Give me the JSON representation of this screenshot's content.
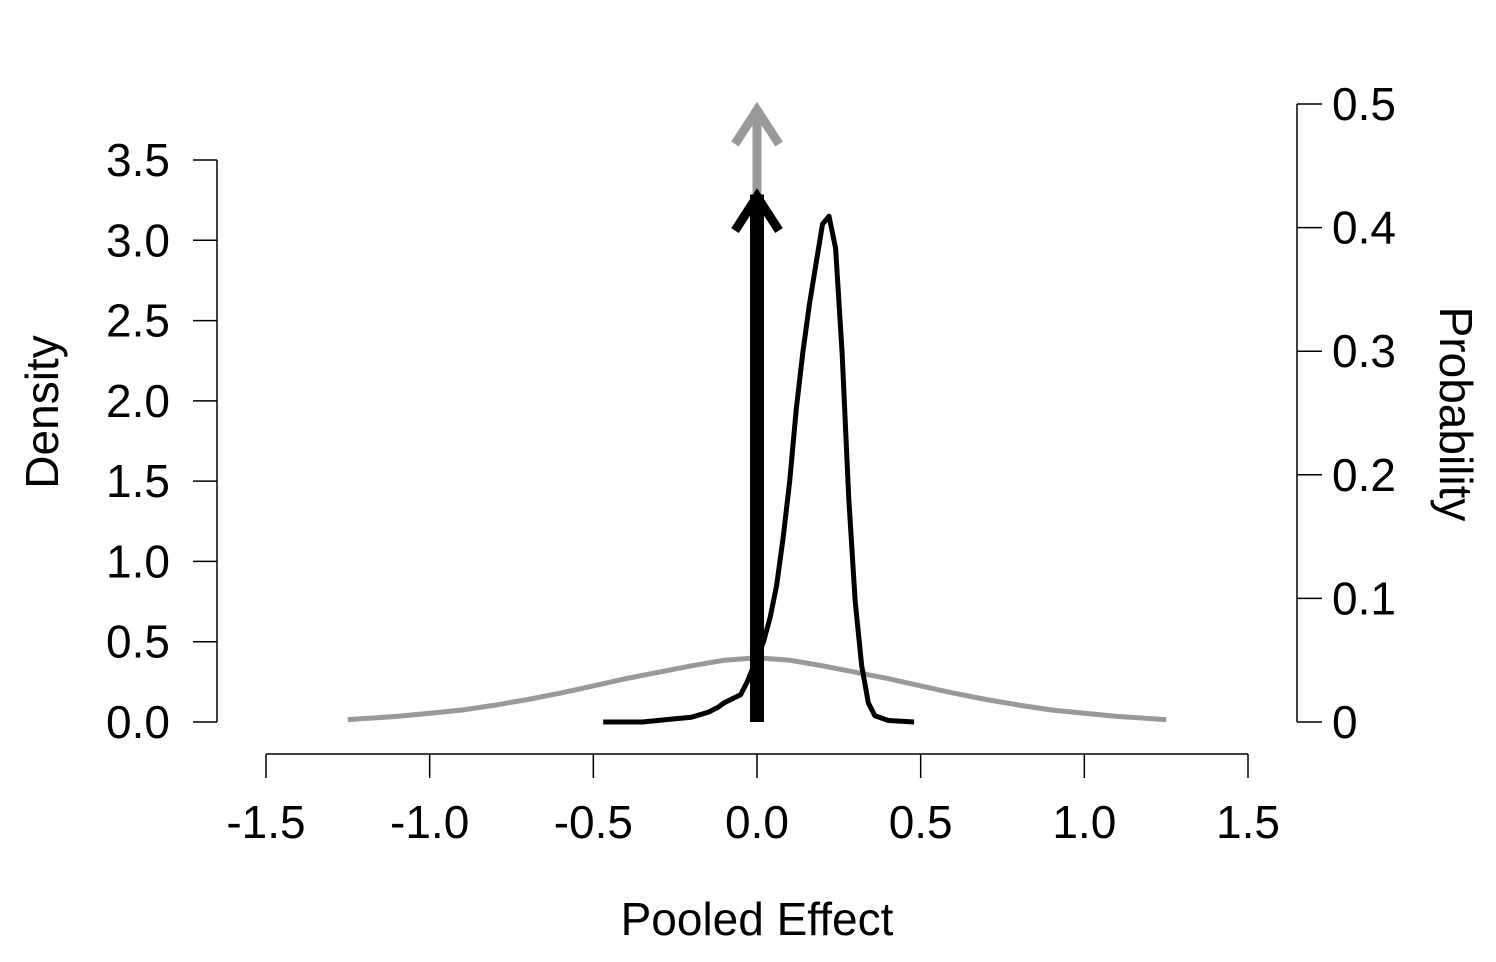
{
  "chart_data": {
    "type": "line",
    "title": "",
    "xlabel": "Pooled Effect",
    "ylabel": "Density",
    "y2label": "Probability",
    "xlim": [
      -1.5,
      1.5
    ],
    "ylim": [
      0,
      3.5
    ],
    "y2lim": [
      0,
      0.5
    ],
    "x_ticks": [
      "-1.5",
      "-1.0",
      "-0.5",
      "0.0",
      "0.5",
      "1.0",
      "1.5"
    ],
    "y_ticks": [
      "0.0",
      "0.5",
      "1.0",
      "1.5",
      "2.0",
      "2.5",
      "3.0",
      "3.5"
    ],
    "y2_ticks": [
      "0",
      "0.1",
      "0.2",
      "0.3",
      "0.4",
      "0.5"
    ],
    "grid": false,
    "colors": {
      "prior": "#999999",
      "posterior": "#000000"
    },
    "series": [
      {
        "role": "prior",
        "x": [
          -1.25,
          -1.1,
          -1.0,
          -0.9,
          -0.8,
          -0.7,
          -0.6,
          -0.5,
          -0.4,
          -0.3,
          -0.2,
          -0.1,
          0.0,
          0.1,
          0.2,
          0.3,
          0.4,
          0.5,
          0.6,
          0.7,
          0.8,
          0.9,
          1.0,
          1.1,
          1.25
        ],
        "y": [
          0.015,
          0.035,
          0.055,
          0.075,
          0.105,
          0.14,
          0.18,
          0.225,
          0.27,
          0.31,
          0.35,
          0.385,
          0.4,
          0.385,
          0.35,
          0.31,
          0.27,
          0.225,
          0.18,
          0.14,
          0.105,
          0.075,
          0.055,
          0.035,
          0.015
        ]
      },
      {
        "role": "posterior",
        "x": [
          -0.47,
          -0.35,
          -0.3,
          -0.25,
          -0.2,
          -0.15,
          -0.12,
          -0.1,
          -0.07,
          -0.05,
          -0.03,
          -0.01,
          0.0,
          0.02,
          0.04,
          0.06,
          0.08,
          0.1,
          0.12,
          0.14,
          0.16,
          0.18,
          0.2,
          0.22,
          0.24,
          0.26,
          0.28,
          0.3,
          0.32,
          0.34,
          0.36,
          0.4,
          0.48
        ],
        "y": [
          0.0,
          0.0,
          0.01,
          0.02,
          0.03,
          0.06,
          0.09,
          0.12,
          0.15,
          0.17,
          0.25,
          0.35,
          0.4,
          0.5,
          0.65,
          0.85,
          1.15,
          1.5,
          1.95,
          2.3,
          2.6,
          2.85,
          3.1,
          3.15,
          2.95,
          2.3,
          1.4,
          0.75,
          0.35,
          0.12,
          0.04,
          0.01,
          0.0
        ]
      }
    ],
    "spikes": [
      {
        "role": "prior",
        "x": 0.0,
        "probability": 0.5
      },
      {
        "role": "posterior",
        "x": 0.0,
        "probability": 0.43
      }
    ]
  }
}
